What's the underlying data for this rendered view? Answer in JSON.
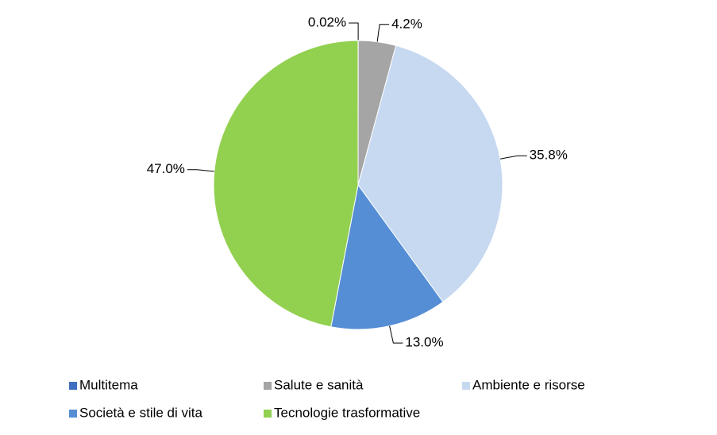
{
  "chart_data": {
    "type": "pie",
    "categories": [
      "Multitema",
      "Salute e sanità",
      "Ambiente e risorse",
      "Società e stile di vita",
      "Tecnologie trasformative"
    ],
    "values": [
      0.02,
      4.2,
      35.8,
      13.0,
      47.0
    ],
    "value_labels": [
      "0.02%",
      "4.2%",
      "35.8%",
      "13.0%",
      "47.0%"
    ],
    "colors": [
      "#3f6fbf",
      "#a5a5a5",
      "#c6d9f1",
      "#558ed5",
      "#92d050"
    ],
    "legend": "bottom"
  }
}
